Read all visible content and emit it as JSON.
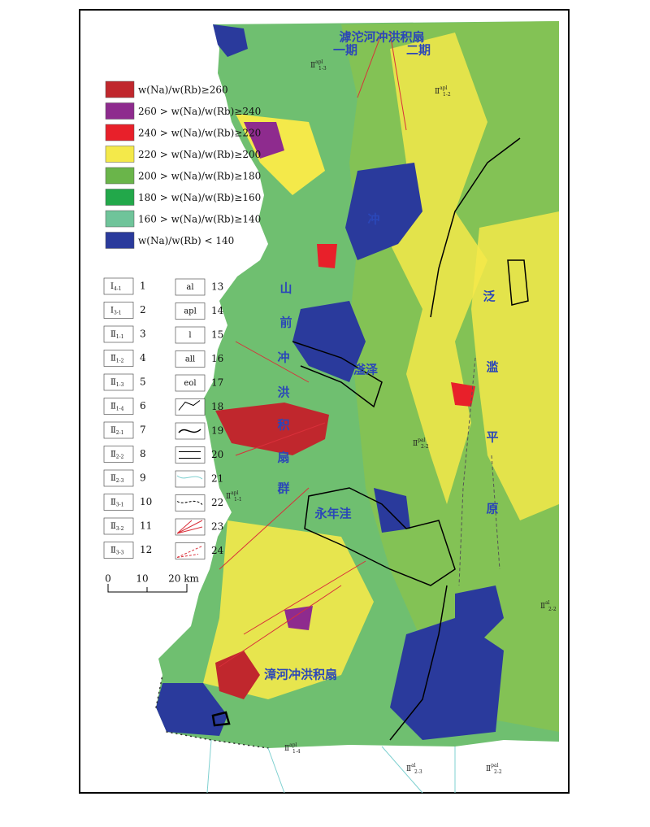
{
  "legend": [
    {
      "label": "w(Na)/w(Rb)≥260",
      "color": "#c0272d"
    },
    {
      "label": "260 > w(Na)/w(Rb)≥240",
      "color": "#8e2b8e"
    },
    {
      "label": "240 > w(Na)/w(Rb)≥220",
      "color": "#e8202a"
    },
    {
      "label": "220 > w(Na)/w(Rb)≥200",
      "color": "#f4e94a"
    },
    {
      "label": "200 > w(Na)/w(Rb)≥180",
      "color": "#6ab54a"
    },
    {
      "label": "180 > w(Na)/w(Rb)≥160",
      "color": "#22a84a"
    },
    {
      "label": "160 > w(Na)/w(Rb)≥140",
      "color": "#6fc49a"
    },
    {
      "label": "w(Na)/w(Rb) < 140",
      "color": "#2a3a9c"
    }
  ],
  "symbols": [
    {
      "number": 1,
      "code": "Ⅰ",
      "sub": "4-1"
    },
    {
      "number": 2,
      "code": "Ⅰ",
      "sub": "3-1"
    },
    {
      "number": 3,
      "code": "Ⅱ",
      "sub": "1-1"
    },
    {
      "number": 4,
      "code": "Ⅱ",
      "sub": "1-2"
    },
    {
      "number": 5,
      "code": "Ⅱ",
      "sub": "1-3"
    },
    {
      "number": 6,
      "code": "Ⅱ",
      "sub": "1-4"
    },
    {
      "number": 7,
      "code": "Ⅱ",
      "sub": "2-1"
    },
    {
      "number": 8,
      "code": "Ⅱ",
      "sub": "2-2"
    },
    {
      "number": 9,
      "code": "Ⅱ",
      "sub": "2-3"
    },
    {
      "number": 10,
      "code": "Ⅱ",
      "sub": "3-1"
    },
    {
      "number": 11,
      "code": "Ⅱ",
      "sub": "3-2"
    },
    {
      "number": 12,
      "code": "Ⅱ",
      "sub": "3-3"
    },
    {
      "number": 13,
      "code": "al"
    },
    {
      "number": 14,
      "code": "apl"
    },
    {
      "number": 15,
      "code": "l"
    },
    {
      "number": 16,
      "code": "all"
    },
    {
      "number": 17,
      "code": "eol"
    },
    {
      "number": 18
    },
    {
      "number": 19
    },
    {
      "number": 20
    },
    {
      "number": 21
    },
    {
      "number": 22
    },
    {
      "number": 23
    },
    {
      "number": 24
    }
  ],
  "scale": [
    "0",
    "10",
    "20 km"
  ],
  "labels": {
    "fan_hutuo": "滹沱河冲洪积扇",
    "stage_1": "一期",
    "stage_2": "二期",
    "piedmont": [
      "山",
      "前",
      "冲",
      "洪",
      "积",
      "扇",
      "群"
    ],
    "plain": [
      "冲",
      "泛",
      "滥",
      "平",
      "原"
    ],
    "ningjin": "滏泽",
    "yongnian": "永年洼",
    "fan_zhang": "漳河冲洪积扇"
  },
  "zones": [
    {
      "code": "Ⅱ",
      "sup": "apl",
      "sub": "1-3"
    },
    {
      "code": "Ⅱ",
      "sup": "apl",
      "sub": "1-2"
    },
    {
      "code": "Ⅱ",
      "sup": "pal",
      "sub": "2-2"
    },
    {
      "code": "Ⅱ",
      "sup": "al",
      "sub": "2-2"
    },
    {
      "code": "Ⅱ",
      "sup": "apl",
      "sub": "1-1"
    },
    {
      "code": "Ⅱ",
      "sup": "pal",
      "sub": "2-2"
    },
    {
      "code": "Ⅱ",
      "sup": "al",
      "sub": "2-3"
    },
    {
      "code": "Ⅱ",
      "sup": "apl",
      "sub": "1-4"
    }
  ]
}
